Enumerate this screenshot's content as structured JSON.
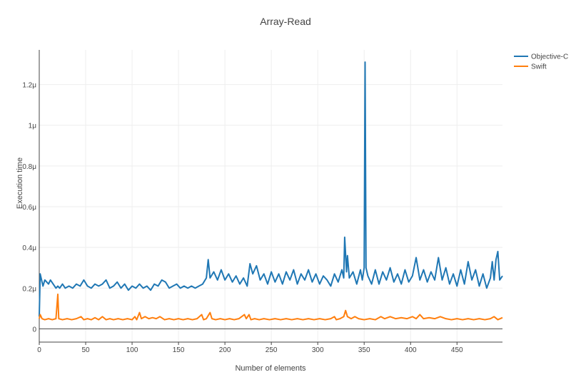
{
  "chart_data": {
    "type": "line",
    "title": "Array-Read",
    "xlabel": "Number of elements",
    "ylabel": "Execution time",
    "xlim": [
      0,
      499
    ],
    "ylim": [
      -6.5e-08,
      1.37e-06
    ],
    "x_ticks": [
      0,
      50,
      100,
      150,
      200,
      250,
      300,
      350,
      400,
      450
    ],
    "y_ticks": [
      {
        "value": 0,
        "label": "0"
      },
      {
        "value": 2e-07,
        "label": "0.2μ"
      },
      {
        "value": 4e-07,
        "label": "0.4μ"
      },
      {
        "value": 6e-07,
        "label": "0.6μ"
      },
      {
        "value": 8e-07,
        "label": "0.8μ"
      },
      {
        "value": 1e-06,
        "label": "1μ"
      },
      {
        "value": 1.2e-06,
        "label": "1.2μ"
      }
    ],
    "grid": true,
    "legend": "top-right",
    "series": [
      {
        "name": "Objective-C",
        "color": "#1f77b4",
        "points": [
          [
            0,
            6e-08
          ],
          [
            1,
            2.7e-07
          ],
          [
            2,
            2.5e-07
          ],
          [
            4,
            2.1e-07
          ],
          [
            6,
            2.4e-07
          ],
          [
            8,
            2.3e-07
          ],
          [
            10,
            2.2e-07
          ],
          [
            12,
            2.4e-07
          ],
          [
            15,
            2.2e-07
          ],
          [
            18,
            2e-07
          ],
          [
            20,
            2.1e-07
          ],
          [
            22,
            2e-07
          ],
          [
            25,
            2.2e-07
          ],
          [
            28,
            2e-07
          ],
          [
            32,
            2.1e-07
          ],
          [
            36,
            2e-07
          ],
          [
            40,
            2.2e-07
          ],
          [
            44,
            2.1e-07
          ],
          [
            48,
            2.4e-07
          ],
          [
            52,
            2.1e-07
          ],
          [
            56,
            2e-07
          ],
          [
            60,
            2.2e-07
          ],
          [
            64,
            2.1e-07
          ],
          [
            68,
            2.2e-07
          ],
          [
            72,
            2.4e-07
          ],
          [
            76,
            2e-07
          ],
          [
            80,
            2.1e-07
          ],
          [
            84,
            2.3e-07
          ],
          [
            88,
            2e-07
          ],
          [
            92,
            2.2e-07
          ],
          [
            96,
            1.9e-07
          ],
          [
            100,
            2.1e-07
          ],
          [
            104,
            2e-07
          ],
          [
            108,
            2.2e-07
          ],
          [
            112,
            2e-07
          ],
          [
            116,
            2.1e-07
          ],
          [
            120,
            1.9e-07
          ],
          [
            124,
            2.2e-07
          ],
          [
            128,
            2.1e-07
          ],
          [
            132,
            2.4e-07
          ],
          [
            136,
            2.3e-07
          ],
          [
            140,
            2e-07
          ],
          [
            144,
            2.1e-07
          ],
          [
            148,
            2.2e-07
          ],
          [
            152,
            2e-07
          ],
          [
            156,
            2.1e-07
          ],
          [
            160,
            2e-07
          ],
          [
            164,
            2.1e-07
          ],
          [
            168,
            2e-07
          ],
          [
            172,
            2.1e-07
          ],
          [
            176,
            2.2e-07
          ],
          [
            180,
            2.5e-07
          ],
          [
            182,
            3.4e-07
          ],
          [
            184,
            2.5e-07
          ],
          [
            188,
            2.8e-07
          ],
          [
            192,
            2.4e-07
          ],
          [
            196,
            2.9e-07
          ],
          [
            200,
            2.4e-07
          ],
          [
            204,
            2.7e-07
          ],
          [
            208,
            2.3e-07
          ],
          [
            212,
            2.6e-07
          ],
          [
            216,
            2.2e-07
          ],
          [
            220,
            2.5e-07
          ],
          [
            224,
            2.1e-07
          ],
          [
            227,
            3.2e-07
          ],
          [
            230,
            2.7e-07
          ],
          [
            234,
            3.1e-07
          ],
          [
            238,
            2.4e-07
          ],
          [
            242,
            2.7e-07
          ],
          [
            246,
            2.2e-07
          ],
          [
            250,
            2.8e-07
          ],
          [
            254,
            2.3e-07
          ],
          [
            258,
            2.7e-07
          ],
          [
            262,
            2.2e-07
          ],
          [
            266,
            2.8e-07
          ],
          [
            270,
            2.4e-07
          ],
          [
            274,
            2.9e-07
          ],
          [
            278,
            2.2e-07
          ],
          [
            282,
            2.7e-07
          ],
          [
            286,
            2.4e-07
          ],
          [
            290,
            2.9e-07
          ],
          [
            294,
            2.3e-07
          ],
          [
            298,
            2.7e-07
          ],
          [
            302,
            2.2e-07
          ],
          [
            306,
            2.6e-07
          ],
          [
            310,
            2.4e-07
          ],
          [
            314,
            2.1e-07
          ],
          [
            318,
            2.7e-07
          ],
          [
            322,
            2.3e-07
          ],
          [
            326,
            2.9e-07
          ],
          [
            328,
            2.5e-07
          ],
          [
            329,
            4.5e-07
          ],
          [
            331,
            2.8e-07
          ],
          [
            332,
            3.6e-07
          ],
          [
            334,
            2.5e-07
          ],
          [
            338,
            2.8e-07
          ],
          [
            342,
            2.2e-07
          ],
          [
            346,
            2.9e-07
          ],
          [
            348,
            2.4e-07
          ],
          [
            350,
            3e-07
          ],
          [
            351,
            1.31e-06
          ],
          [
            352,
            3e-07
          ],
          [
            354,
            2.6e-07
          ],
          [
            358,
            2.2e-07
          ],
          [
            362,
            2.9e-07
          ],
          [
            366,
            2.2e-07
          ],
          [
            370,
            2.8e-07
          ],
          [
            374,
            2.4e-07
          ],
          [
            378,
            3e-07
          ],
          [
            382,
            2.3e-07
          ],
          [
            386,
            2.7e-07
          ],
          [
            390,
            2.2e-07
          ],
          [
            394,
            2.9e-07
          ],
          [
            398,
            2.3e-07
          ],
          [
            402,
            2.6e-07
          ],
          [
            406,
            3.5e-07
          ],
          [
            410,
            2.4e-07
          ],
          [
            414,
            2.9e-07
          ],
          [
            418,
            2.3e-07
          ],
          [
            422,
            2.8e-07
          ],
          [
            426,
            2.4e-07
          ],
          [
            430,
            3.5e-07
          ],
          [
            434,
            2.4e-07
          ],
          [
            438,
            3e-07
          ],
          [
            442,
            2.2e-07
          ],
          [
            446,
            2.7e-07
          ],
          [
            450,
            2.1e-07
          ],
          [
            454,
            2.9e-07
          ],
          [
            458,
            2.2e-07
          ],
          [
            462,
            3.3e-07
          ],
          [
            466,
            2.4e-07
          ],
          [
            470,
            2.9e-07
          ],
          [
            474,
            2.1e-07
          ],
          [
            478,
            2.7e-07
          ],
          [
            482,
            2e-07
          ],
          [
            486,
            2.5e-07
          ],
          [
            488,
            3.3e-07
          ],
          [
            490,
            2.4e-07
          ],
          [
            492,
            3.4e-07
          ],
          [
            494,
            3.8e-07
          ],
          [
            496,
            2.4e-07
          ],
          [
            499,
            2.6e-07
          ]
        ]
      },
      {
        "name": "Swift",
        "color": "#ff7f0e",
        "points": [
          [
            0,
            5e-08
          ],
          [
            1,
            7e-08
          ],
          [
            3,
            5e-08
          ],
          [
            6,
            4.5e-08
          ],
          [
            10,
            5e-08
          ],
          [
            14,
            4.5e-08
          ],
          [
            18,
            5e-08
          ],
          [
            20,
            1.7e-07
          ],
          [
            21,
            5e-08
          ],
          [
            25,
            4.5e-08
          ],
          [
            30,
            5e-08
          ],
          [
            35,
            4.5e-08
          ],
          [
            40,
            5e-08
          ],
          [
            45,
            6e-08
          ],
          [
            48,
            4.5e-08
          ],
          [
            52,
            5e-08
          ],
          [
            56,
            4.5e-08
          ],
          [
            60,
            5.5e-08
          ],
          [
            64,
            4.5e-08
          ],
          [
            68,
            6e-08
          ],
          [
            72,
            4.5e-08
          ],
          [
            76,
            5e-08
          ],
          [
            80,
            4.5e-08
          ],
          [
            85,
            5e-08
          ],
          [
            90,
            4.5e-08
          ],
          [
            95,
            5e-08
          ],
          [
            100,
            4.5e-08
          ],
          [
            103,
            6e-08
          ],
          [
            105,
            4.5e-08
          ],
          [
            108,
            8e-08
          ],
          [
            110,
            5e-08
          ],
          [
            114,
            6e-08
          ],
          [
            118,
            5e-08
          ],
          [
            122,
            5.5e-08
          ],
          [
            126,
            5e-08
          ],
          [
            130,
            6e-08
          ],
          [
            135,
            4.5e-08
          ],
          [
            140,
            5e-08
          ],
          [
            145,
            4.5e-08
          ],
          [
            150,
            5e-08
          ],
          [
            155,
            4.5e-08
          ],
          [
            160,
            5e-08
          ],
          [
            165,
            4.5e-08
          ],
          [
            170,
            5e-08
          ],
          [
            175,
            7e-08
          ],
          [
            177,
            4.5e-08
          ],
          [
            180,
            5e-08
          ],
          [
            184,
            8e-08
          ],
          [
            186,
            5e-08
          ],
          [
            190,
            4.5e-08
          ],
          [
            195,
            5e-08
          ],
          [
            200,
            4.5e-08
          ],
          [
            205,
            5e-08
          ],
          [
            210,
            4.5e-08
          ],
          [
            215,
            5e-08
          ],
          [
            221,
            7e-08
          ],
          [
            223,
            5e-08
          ],
          [
            226,
            7e-08
          ],
          [
            228,
            4.5e-08
          ],
          [
            232,
            5e-08
          ],
          [
            237,
            4.5e-08
          ],
          [
            242,
            5e-08
          ],
          [
            248,
            4.5e-08
          ],
          [
            254,
            5e-08
          ],
          [
            260,
            4.5e-08
          ],
          [
            266,
            5e-08
          ],
          [
            272,
            4.5e-08
          ],
          [
            278,
            5e-08
          ],
          [
            284,
            4.5e-08
          ],
          [
            290,
            5e-08
          ],
          [
            296,
            4.5e-08
          ],
          [
            302,
            5e-08
          ],
          [
            308,
            4.5e-08
          ],
          [
            314,
            5e-08
          ],
          [
            318,
            6e-08
          ],
          [
            320,
            4.5e-08
          ],
          [
            324,
            5e-08
          ],
          [
            328,
            6e-08
          ],
          [
            330,
            9e-08
          ],
          [
            332,
            6e-08
          ],
          [
            336,
            5e-08
          ],
          [
            340,
            6e-08
          ],
          [
            344,
            5e-08
          ],
          [
            350,
            4.5e-08
          ],
          [
            356,
            5e-08
          ],
          [
            362,
            4.5e-08
          ],
          [
            368,
            6e-08
          ],
          [
            372,
            5e-08
          ],
          [
            378,
            6e-08
          ],
          [
            384,
            5e-08
          ],
          [
            390,
            5.5e-08
          ],
          [
            396,
            5e-08
          ],
          [
            402,
            6e-08
          ],
          [
            406,
            5e-08
          ],
          [
            410,
            7e-08
          ],
          [
            414,
            5e-08
          ],
          [
            420,
            5.5e-08
          ],
          [
            426,
            5e-08
          ],
          [
            432,
            6e-08
          ],
          [
            438,
            5e-08
          ],
          [
            444,
            4.5e-08
          ],
          [
            450,
            5e-08
          ],
          [
            456,
            4.5e-08
          ],
          [
            462,
            5e-08
          ],
          [
            468,
            4.5e-08
          ],
          [
            474,
            5e-08
          ],
          [
            480,
            4.5e-08
          ],
          [
            486,
            5e-08
          ],
          [
            490,
            6e-08
          ],
          [
            494,
            4.5e-08
          ],
          [
            499,
            5.5e-08
          ]
        ]
      }
    ]
  }
}
